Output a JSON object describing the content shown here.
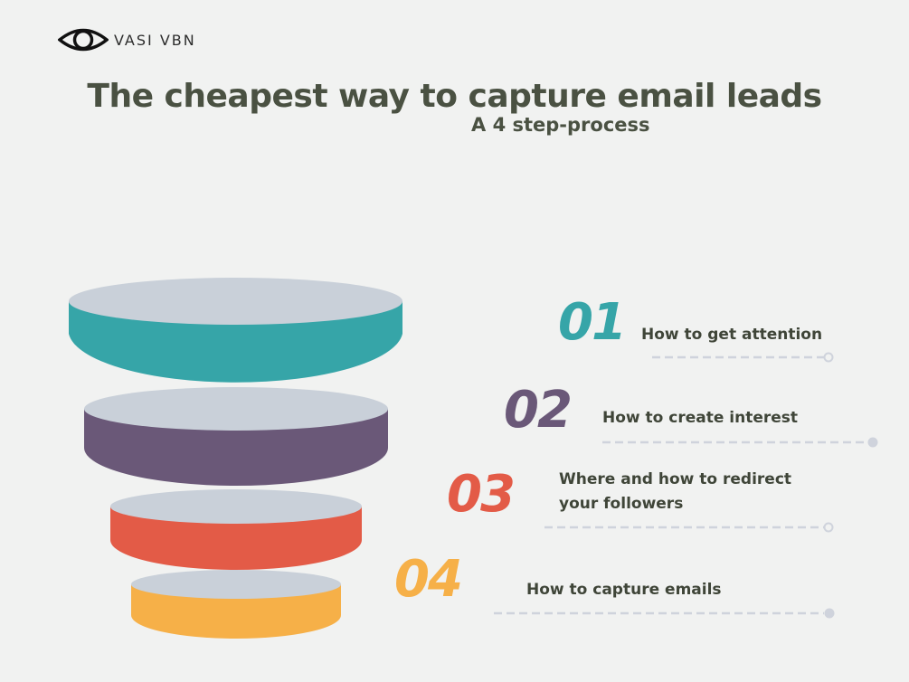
{
  "brand": {
    "name": "VASI VBN",
    "logo_icon": "eye-icon"
  },
  "title": "The cheapest way to capture email leads",
  "subtitle": "A 4 step-process",
  "colors": {
    "background": "#f1f2f1",
    "layer_top": "#c9d0d9",
    "text": "#4a5142"
  },
  "steps": [
    {
      "number": "01",
      "label": "How to get attention",
      "color": "#36a5a8"
    },
    {
      "number": "02",
      "label": "How to create interest",
      "color": "#6a5878"
    },
    {
      "number": "03",
      "label": "Where and how to redirect your followers",
      "color": "#e35b47"
    },
    {
      "number": "04",
      "label": "How to capture emails",
      "color": "#f6b048"
    }
  ]
}
